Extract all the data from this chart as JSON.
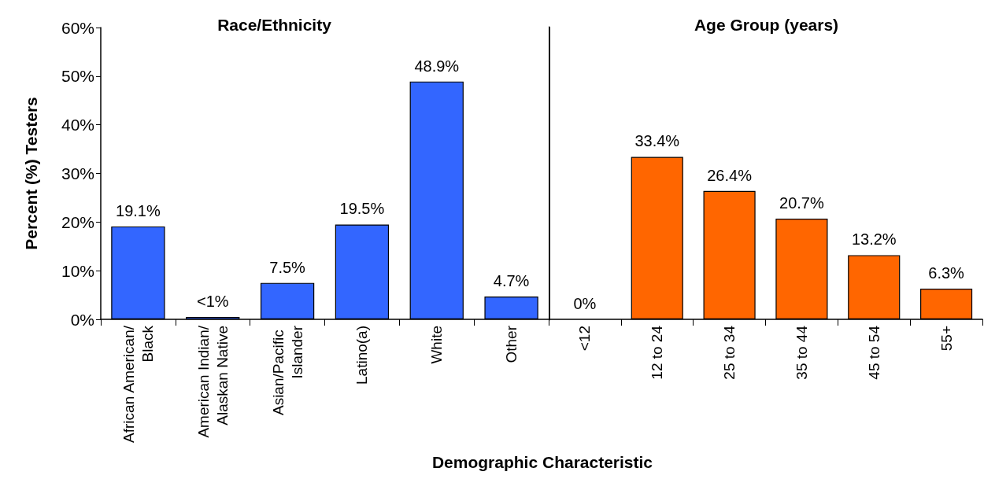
{
  "chart_data": [
    {
      "type": "bar",
      "title": "Race/Ethnicity",
      "ylabel": "Percent (%) Testers",
      "xlabel": "Demographic Characteristic",
      "categories": [
        "African American/Black",
        "American Indian/Alaskan Native",
        "Asian/Pacific Islander",
        "Latino(a)",
        "White",
        "Other"
      ],
      "values": [
        19.1,
        0.5,
        7.5,
        19.5,
        48.9,
        4.7
      ],
      "value_labels": [
        "19.1%",
        "<1%",
        "7.5%",
        "19.5%",
        "48.9%",
        "4.7%"
      ],
      "color": "#3366ff",
      "ylim": [
        0,
        60
      ],
      "yticks": [
        {
          "value": 0,
          "label": "0%"
        },
        {
          "value": 10,
          "label": "10%"
        },
        {
          "value": 20,
          "label": "20%"
        },
        {
          "value": 30,
          "label": "30%"
        },
        {
          "value": 40,
          "label": "40%"
        },
        {
          "value": 50,
          "label": "50%"
        },
        {
          "value": 60,
          "label": "60%"
        }
      ],
      "grid": false
    },
    {
      "type": "bar",
      "title": "Age Group (years)",
      "categories": [
        "<12",
        "12 to 24",
        "25 to 34",
        "35 to 44",
        "45 to 54",
        "55+"
      ],
      "values": [
        0,
        33.4,
        26.4,
        20.7,
        13.2,
        6.3
      ],
      "value_labels": [
        "0%",
        "33.4%",
        "26.4%",
        "20.7%",
        "13.2%",
        "6.3%"
      ],
      "color": "#ff6600",
      "ylim": [
        0,
        60
      ],
      "yticks": [
        {
          "value": 0,
          "label": "0%"
        },
        {
          "value": 10,
          "label": "10%"
        },
        {
          "value": 20,
          "label": "20%"
        },
        {
          "value": 30,
          "label": "30%"
        },
        {
          "value": 40,
          "label": "40%"
        },
        {
          "value": 50,
          "label": "50%"
        },
        {
          "value": 60,
          "label": "60%"
        }
      ],
      "grid": false,
      "tick_labels": "x"
    }
  ]
}
